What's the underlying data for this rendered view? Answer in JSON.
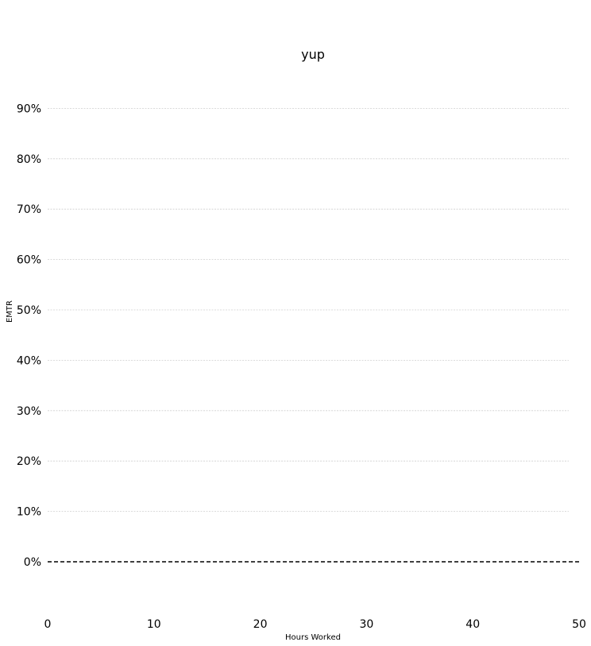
{
  "chart_data": {
    "type": "line",
    "title": "yup",
    "xlabel": "Hours Worked",
    "ylabel": "EMTR",
    "xlim": [
      0,
      50
    ],
    "ylim": [
      -0.1,
      0.95
    ],
    "x_ticks": [
      0,
      10,
      20,
      30,
      40,
      50
    ],
    "x_tick_labels": [
      "0",
      "10",
      "20",
      "30",
      "40",
      "50"
    ],
    "y_ticks": [
      0,
      0.1,
      0.2,
      0.3,
      0.4,
      0.5,
      0.6,
      0.7,
      0.8,
      0.9
    ],
    "y_tick_labels": [
      "0%",
      "10%",
      "20%",
      "30%",
      "40%",
      "50%",
      "60%",
      "70%",
      "80%",
      "90%"
    ],
    "grid": "horizontal",
    "reference_lines": [
      {
        "axis": "y",
        "value": 0,
        "style": "dashed",
        "color": "#000000"
      }
    ],
    "series": []
  }
}
